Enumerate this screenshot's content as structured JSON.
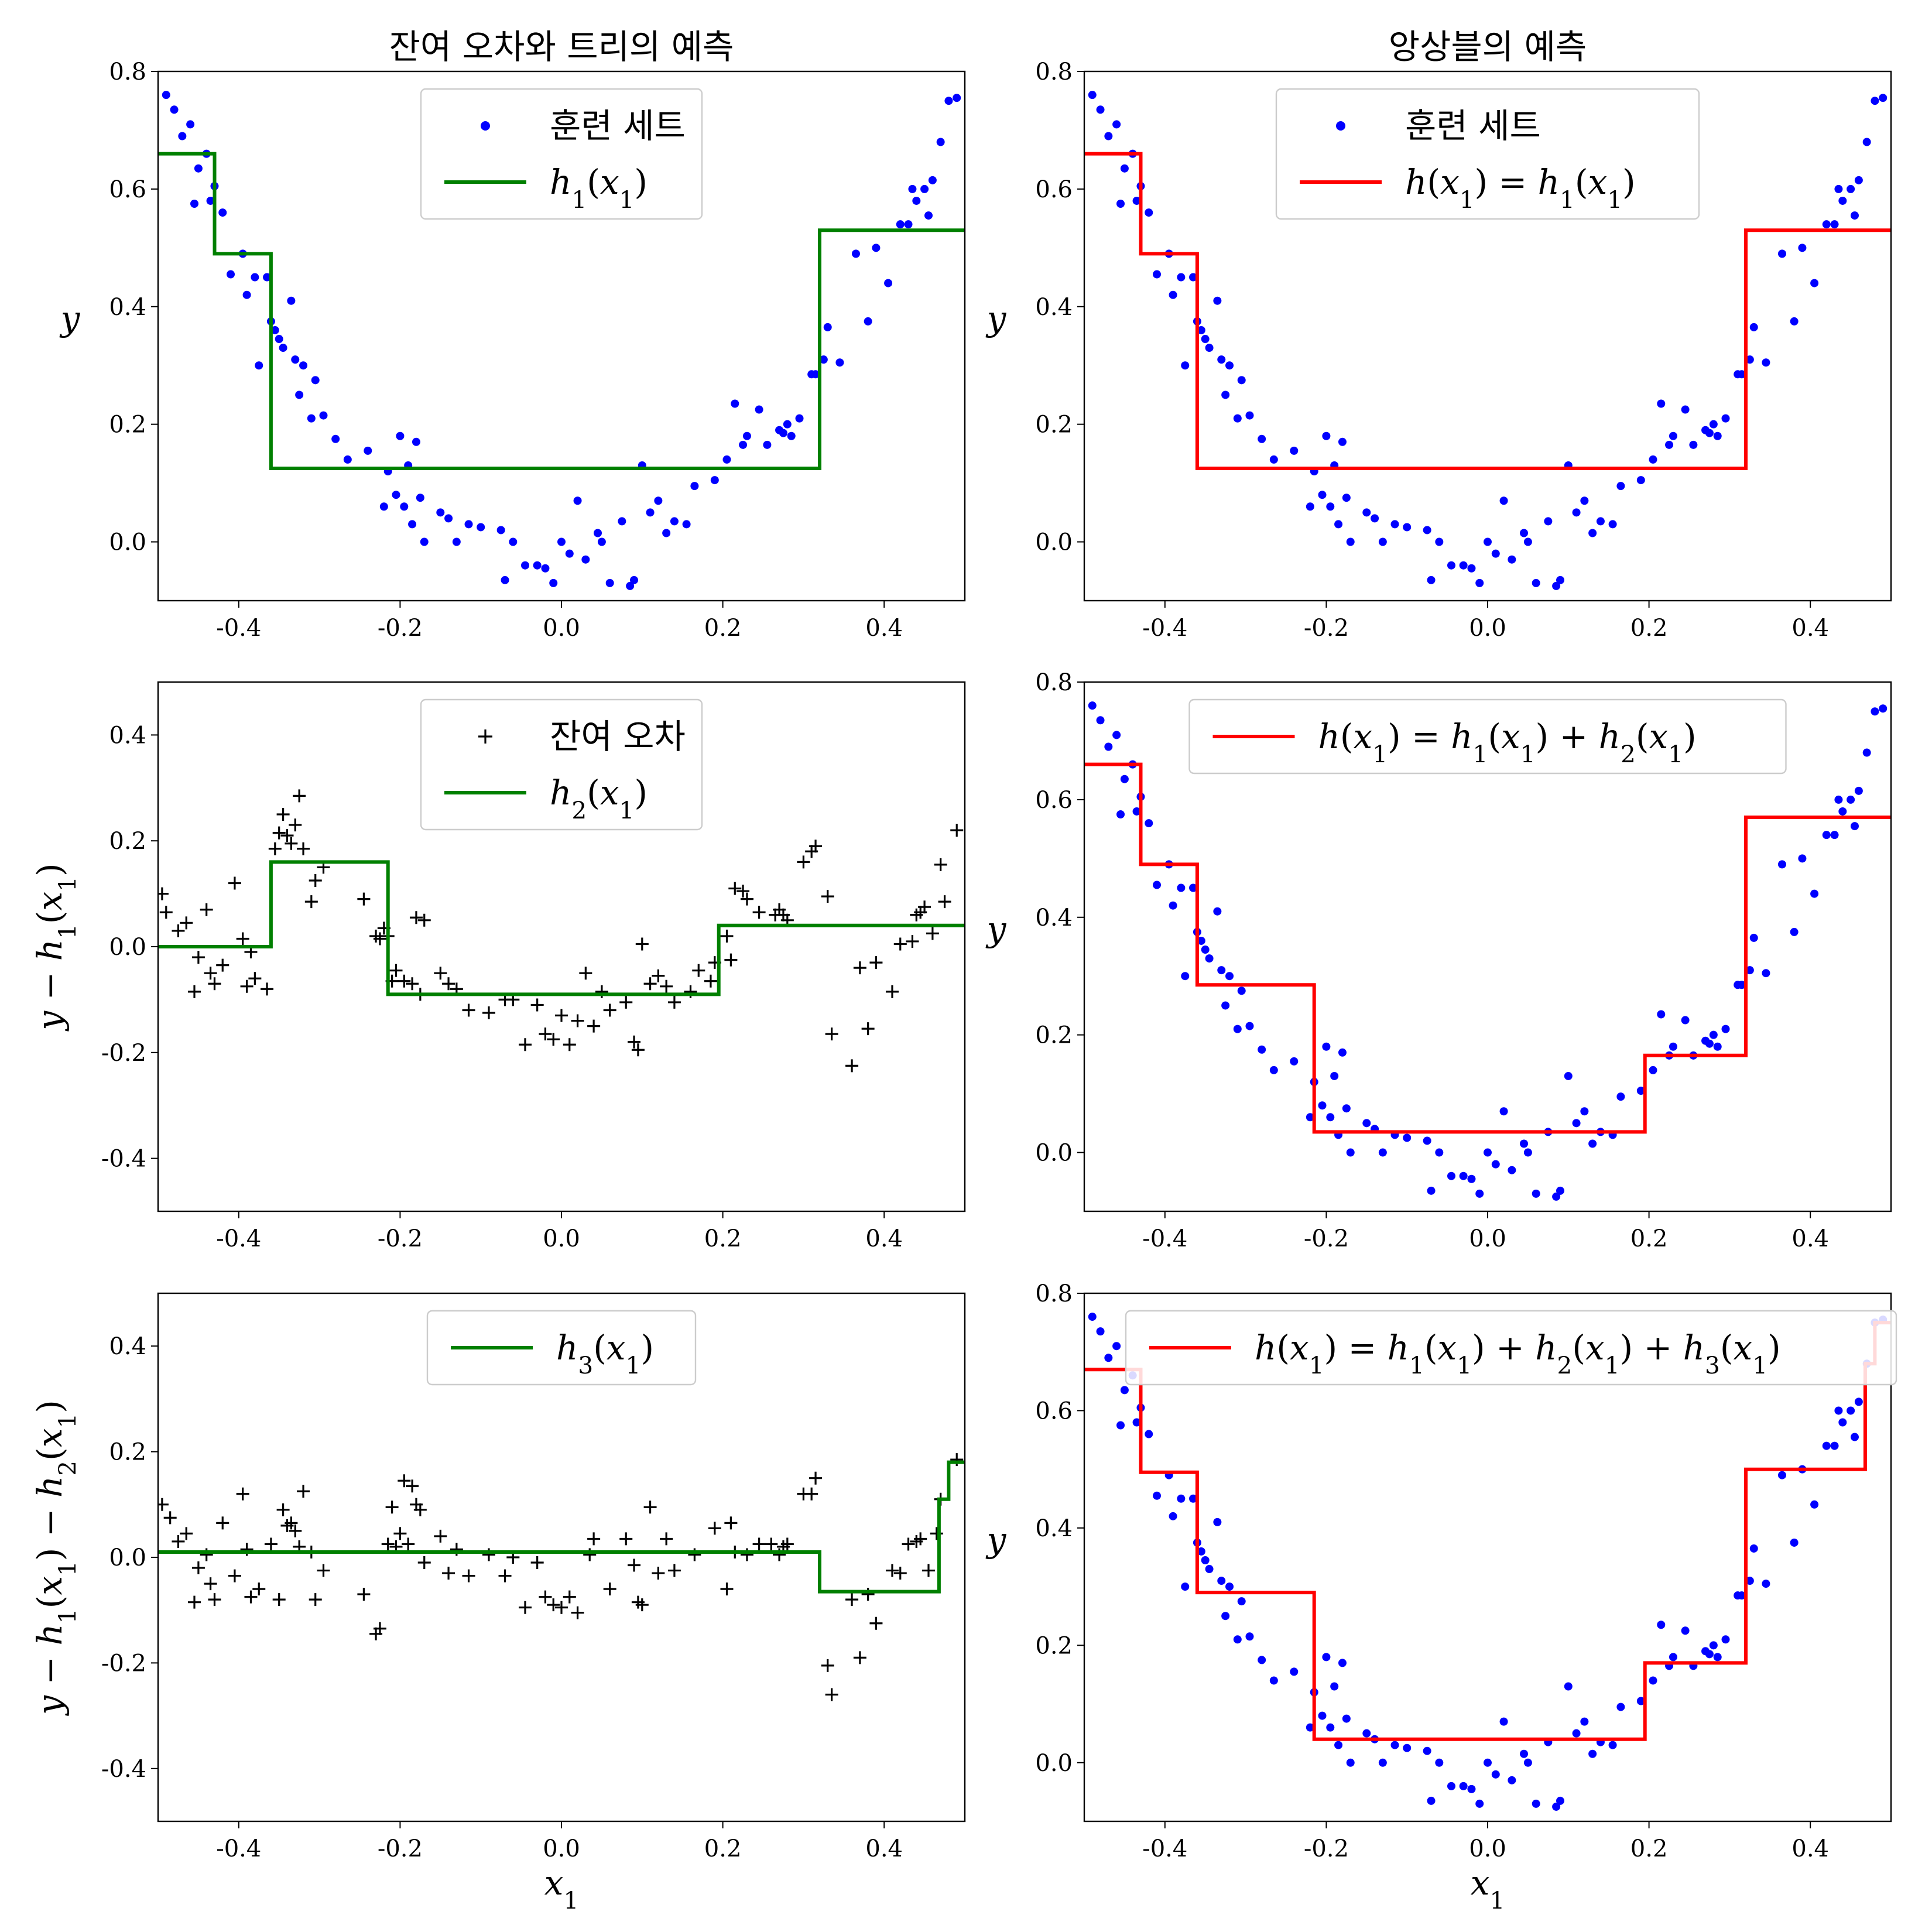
{
  "figure": {
    "colors": {
      "train": "#0000ff",
      "stage_fit": "#008000",
      "ensemble": "#ff0000",
      "residual": "#000000"
    },
    "x_ticks": [
      "-0.4",
      "-0.2",
      "0.0",
      "0.2",
      "0.4"
    ],
    "x_tick_values": [
      -0.4,
      -0.2,
      0.0,
      0.2,
      0.4
    ]
  },
  "chart_data": [
    {
      "type": "scatter",
      "panel": "top-left",
      "title": "잔여 오차와 트리의 예측",
      "ylabel": "y",
      "xlabel": "",
      "xlim": [
        -0.5,
        0.5
      ],
      "ylim": [
        -0.1,
        0.8
      ],
      "y_ticks": [
        "0.0",
        "0.2",
        "0.4",
        "0.6",
        "0.8"
      ],
      "y_tick_values": [
        0.0,
        0.2,
        0.4,
        0.6,
        0.8
      ],
      "legend": {
        "placement": "upper-center",
        "entries": [
          {
            "label": "훈련 세트",
            "marker": "dot",
            "color": "#0000ff"
          },
          {
            "label": "h1(x1)",
            "marker": "line",
            "color": "#008000"
          }
        ]
      },
      "points_series": "train",
      "step": {
        "name": "h1(x1)",
        "color": "#008000",
        "x": [
          -0.5,
          -0.43,
          -0.43,
          -0.36,
          -0.36,
          0.32,
          0.32,
          0.5
        ],
        "y": [
          0.66,
          0.66,
          0.49,
          0.49,
          0.125,
          0.125,
          0.53,
          0.53
        ]
      }
    },
    {
      "type": "scatter",
      "panel": "top-right",
      "title": "앙상블의 예측",
      "ylabel": "y",
      "xlabel": "",
      "xlim": [
        -0.5,
        0.5
      ],
      "ylim": [
        -0.1,
        0.8
      ],
      "y_ticks": [
        "0.0",
        "0.2",
        "0.4",
        "0.6",
        "0.8"
      ],
      "y_tick_values": [
        0.0,
        0.2,
        0.4,
        0.6,
        0.8
      ],
      "legend": {
        "placement": "upper-center",
        "entries": [
          {
            "label": "훈련 세트",
            "marker": "dot",
            "color": "#0000ff"
          },
          {
            "label": "h(x1) = h1(x1)",
            "marker": "line",
            "color": "#ff0000"
          }
        ]
      },
      "points_series": "train",
      "step": {
        "name": "h(x1) = h1(x1)",
        "color": "#ff0000",
        "x": [
          -0.5,
          -0.43,
          -0.43,
          -0.36,
          -0.36,
          0.32,
          0.32,
          0.5
        ],
        "y": [
          0.66,
          0.66,
          0.49,
          0.49,
          0.125,
          0.125,
          0.53,
          0.53
        ]
      }
    },
    {
      "type": "scatter",
      "panel": "middle-left",
      "title": "",
      "ylabel": "y − h1(x1)",
      "xlabel": "",
      "xlim": [
        -0.5,
        0.5
      ],
      "ylim": [
        -0.5,
        0.5
      ],
      "y_ticks": [
        "-0.4",
        "-0.2",
        "0.0",
        "0.2",
        "0.4"
      ],
      "y_tick_values": [
        -0.4,
        -0.2,
        0.0,
        0.2,
        0.4
      ],
      "legend": {
        "placement": "upper-center",
        "entries": [
          {
            "label": "잔여 오차",
            "marker": "plus",
            "color": "#000000"
          },
          {
            "label": "h2(x1)",
            "marker": "line",
            "color": "#008000"
          }
        ]
      },
      "points_series": "residual1",
      "step": {
        "name": "h2(x1)",
        "color": "#008000",
        "x": [
          -0.5,
          -0.36,
          -0.36,
          -0.215,
          -0.215,
          0.195,
          0.195,
          0.5
        ],
        "y": [
          0.0,
          0.0,
          0.16,
          0.16,
          -0.09,
          -0.09,
          0.04,
          0.04
        ]
      }
    },
    {
      "type": "scatter",
      "panel": "middle-right",
      "title": "",
      "ylabel": "y",
      "xlabel": "",
      "xlim": [
        -0.5,
        0.5
      ],
      "ylim": [
        -0.1,
        0.8
      ],
      "y_ticks": [
        "0.0",
        "0.2",
        "0.4",
        "0.6",
        "0.8"
      ],
      "y_tick_values": [
        0.0,
        0.2,
        0.4,
        0.6,
        0.8
      ],
      "legend": {
        "placement": "upper-center",
        "entries": [
          {
            "label": "h(x1) = h1(x1) + h2(x1)",
            "marker": "line",
            "color": "#ff0000"
          }
        ]
      },
      "points_series": "train",
      "step": {
        "name": "h(x1) = h1(x1) + h2(x1)",
        "color": "#ff0000",
        "x": [
          -0.5,
          -0.43,
          -0.43,
          -0.36,
          -0.36,
          -0.215,
          -0.215,
          0.195,
          0.195,
          0.32,
          0.32,
          0.5
        ],
        "y": [
          0.66,
          0.66,
          0.49,
          0.49,
          0.285,
          0.285,
          0.035,
          0.035,
          0.165,
          0.165,
          0.57,
          0.57
        ]
      }
    },
    {
      "type": "scatter",
      "panel": "bottom-left",
      "title": "",
      "ylabel": "y − h1(x1) − h2(x1)",
      "xlabel": "x1",
      "xlim": [
        -0.5,
        0.5
      ],
      "ylim": [
        -0.5,
        0.5
      ],
      "y_ticks": [
        "-0.4",
        "-0.2",
        "0.0",
        "0.2",
        "0.4"
      ],
      "y_tick_values": [
        -0.4,
        -0.2,
        0.0,
        0.2,
        0.4
      ],
      "legend": {
        "placement": "upper-center",
        "entries": [
          {
            "label": "h3(x1)",
            "marker": "line",
            "color": "#008000"
          }
        ]
      },
      "points_series": "residual2",
      "step": {
        "name": "h3(x1)",
        "color": "#008000",
        "x": [
          -0.5,
          0.32,
          0.32,
          0.468,
          0.468,
          0.48,
          0.48,
          0.5
        ],
        "y": [
          0.01,
          0.01,
          -0.065,
          -0.065,
          0.11,
          0.11,
          0.18,
          0.18
        ]
      }
    },
    {
      "type": "scatter",
      "panel": "bottom-right",
      "title": "",
      "ylabel": "y",
      "xlabel": "x1",
      "xlim": [
        -0.5,
        0.5
      ],
      "ylim": [
        -0.1,
        0.8
      ],
      "y_ticks": [
        "0.0",
        "0.2",
        "0.4",
        "0.6",
        "0.8"
      ],
      "y_tick_values": [
        0.0,
        0.2,
        0.4,
        0.6,
        0.8
      ],
      "legend": {
        "placement": "upper-center",
        "entries": [
          {
            "label": "h(x1) = h1(x1) + h2(x1) + h3(x1)",
            "marker": "line",
            "color": "#ff0000"
          }
        ]
      },
      "points_series": "train",
      "step": {
        "name": "h(x1) = h1(x1) + h2(x1) + h3(x1)",
        "color": "#ff0000",
        "x": [
          -0.5,
          -0.43,
          -0.43,
          -0.36,
          -0.36,
          -0.215,
          -0.215,
          0.195,
          0.195,
          0.32,
          0.32,
          0.468,
          0.468,
          0.48,
          0.48,
          0.5
        ],
        "y": [
          0.67,
          0.67,
          0.495,
          0.495,
          0.29,
          0.29,
          0.04,
          0.04,
          0.17,
          0.17,
          0.5,
          0.5,
          0.68,
          0.68,
          0.75,
          0.75
        ]
      }
    }
  ],
  "series_points": {
    "train": {
      "x": [
        -0.49,
        -0.48,
        -0.47,
        -0.46,
        -0.455,
        -0.45,
        -0.44,
        -0.435,
        -0.43,
        -0.42,
        -0.41,
        -0.395,
        -0.39,
        -0.38,
        -0.375,
        -0.365,
        -0.36,
        -0.355,
        -0.35,
        -0.345,
        -0.335,
        -0.33,
        -0.325,
        -0.32,
        -0.31,
        -0.305,
        -0.295,
        -0.28,
        -0.265,
        -0.24,
        -0.22,
        -0.215,
        -0.205,
        -0.2,
        -0.195,
        -0.19,
        -0.185,
        -0.18,
        -0.175,
        -0.17,
        -0.15,
        -0.14,
        -0.13,
        -0.115,
        -0.1,
        -0.075,
        -0.07,
        -0.06,
        -0.045,
        -0.03,
        -0.02,
        -0.01,
        0.0,
        0.01,
        0.02,
        0.03,
        0.045,
        0.05,
        0.06,
        0.075,
        0.085,
        0.09,
        0.1,
        0.11,
        0.12,
        0.13,
        0.14,
        0.155,
        0.165,
        0.19,
        0.205,
        0.215,
        0.225,
        0.23,
        0.245,
        0.255,
        0.27,
        0.275,
        0.28,
        0.285,
        0.295,
        0.31,
        0.315,
        0.325,
        0.33,
        0.345,
        0.365,
        0.38,
        0.39,
        0.405,
        0.42,
        0.43,
        0.435,
        0.44,
        0.45,
        0.455,
        0.46,
        0.47,
        0.48,
        0.49
      ],
      "y": [
        0.76,
        0.735,
        0.69,
        0.71,
        0.575,
        0.635,
        0.66,
        0.58,
        0.605,
        0.56,
        0.455,
        0.49,
        0.42,
        0.45,
        0.3,
        0.45,
        0.375,
        0.36,
        0.345,
        0.33,
        0.41,
        0.31,
        0.25,
        0.3,
        0.21,
        0.275,
        0.215,
        0.175,
        0.14,
        0.155,
        0.06,
        0.12,
        0.08,
        0.18,
        0.06,
        0.13,
        0.03,
        0.17,
        0.075,
        0.0,
        0.05,
        0.04,
        0.0,
        0.03,
        0.025,
        0.02,
        -0.065,
        0.0,
        -0.04,
        -0.04,
        -0.045,
        -0.07,
        0.0,
        -0.02,
        0.07,
        -0.03,
        0.015,
        0.0,
        -0.07,
        0.035,
        -0.075,
        -0.065,
        0.13,
        0.05,
        0.07,
        0.015,
        0.035,
        0.03,
        0.095,
        0.105,
        0.14,
        0.235,
        0.165,
        0.18,
        0.225,
        0.165,
        0.19,
        0.185,
        0.2,
        0.18,
        0.21,
        0.285,
        0.285,
        0.31,
        0.365,
        0.305,
        0.49,
        0.375,
        0.5,
        0.44,
        0.54,
        0.54,
        0.6,
        0.58,
        0.6,
        0.555,
        0.615,
        0.68,
        0.75,
        0.755
      ]
    },
    "residual1": {
      "x": [
        -0.495,
        -0.49,
        -0.475,
        -0.465,
        -0.455,
        -0.45,
        -0.44,
        -0.435,
        -0.43,
        -0.42,
        -0.405,
        -0.395,
        -0.39,
        -0.385,
        -0.38,
        -0.365,
        -0.355,
        -0.35,
        -0.345,
        -0.34,
        -0.335,
        -0.33,
        -0.325,
        -0.32,
        -0.31,
        -0.305,
        -0.295,
        -0.245,
        -0.23,
        -0.225,
        -0.22,
        -0.215,
        -0.21,
        -0.205,
        -0.195,
        -0.185,
        -0.18,
        -0.175,
        -0.17,
        -0.15,
        -0.14,
        -0.13,
        -0.115,
        -0.09,
        -0.07,
        -0.06,
        -0.045,
        -0.03,
        -0.02,
        -0.01,
        0.0,
        0.01,
        0.02,
        0.03,
        0.04,
        0.05,
        0.06,
        0.08,
        0.09,
        0.095,
        0.1,
        0.11,
        0.12,
        0.13,
        0.14,
        0.16,
        0.17,
        0.185,
        0.19,
        0.205,
        0.21,
        0.215,
        0.225,
        0.23,
        0.245,
        0.265,
        0.27,
        0.275,
        0.28,
        0.3,
        0.31,
        0.315,
        0.33,
        0.335,
        0.36,
        0.37,
        0.38,
        0.39,
        0.41,
        0.42,
        0.435,
        0.44,
        0.445,
        0.45,
        0.46,
        0.47,
        0.475,
        0.49
      ],
      "y": [
        0.1,
        0.065,
        0.03,
        0.045,
        -0.085,
        -0.02,
        0.07,
        -0.05,
        -0.07,
        -0.035,
        0.12,
        0.015,
        -0.075,
        -0.01,
        -0.06,
        -0.08,
        0.185,
        0.215,
        0.25,
        0.21,
        0.195,
        0.23,
        0.285,
        0.185,
        0.085,
        0.125,
        0.15,
        0.09,
        0.02,
        0.015,
        0.035,
        0.02,
        -0.065,
        -0.045,
        -0.065,
        -0.07,
        0.055,
        -0.09,
        0.05,
        -0.05,
        -0.07,
        -0.08,
        -0.12,
        -0.125,
        -0.1,
        -0.1,
        -0.185,
        -0.11,
        -0.165,
        -0.175,
        -0.13,
        -0.185,
        -0.14,
        -0.05,
        -0.15,
        -0.085,
        -0.12,
        -0.105,
        -0.18,
        -0.195,
        0.005,
        -0.07,
        -0.055,
        -0.075,
        -0.105,
        -0.085,
        -0.045,
        -0.065,
        -0.03,
        0.02,
        -0.025,
        0.11,
        0.105,
        0.09,
        0.065,
        0.06,
        0.07,
        0.06,
        0.05,
        0.16,
        0.18,
        0.19,
        0.095,
        -0.165,
        -0.225,
        -0.04,
        -0.155,
        -0.03,
        -0.085,
        0.005,
        0.01,
        0.06,
        0.065,
        0.075,
        0.025,
        0.155,
        0.085,
        0.22
      ]
    },
    "residual2": {
      "x": [
        -0.495,
        -0.485,
        -0.475,
        -0.465,
        -0.455,
        -0.45,
        -0.44,
        -0.435,
        -0.43,
        -0.42,
        -0.405,
        -0.395,
        -0.39,
        -0.385,
        -0.375,
        -0.36,
        -0.35,
        -0.345,
        -0.34,
        -0.335,
        -0.33,
        -0.325,
        -0.32,
        -0.31,
        -0.305,
        -0.295,
        -0.245,
        -0.23,
        -0.225,
        -0.215,
        -0.21,
        -0.205,
        -0.2,
        -0.195,
        -0.19,
        -0.185,
        -0.18,
        -0.175,
        -0.17,
        -0.15,
        -0.14,
        -0.13,
        -0.115,
        -0.09,
        -0.07,
        -0.06,
        -0.045,
        -0.03,
        -0.02,
        -0.01,
        0.0,
        0.01,
        0.02,
        0.035,
        0.04,
        0.06,
        0.08,
        0.09,
        0.095,
        0.1,
        0.11,
        0.12,
        0.13,
        0.14,
        0.165,
        0.19,
        0.205,
        0.21,
        0.215,
        0.23,
        0.245,
        0.26,
        0.27,
        0.275,
        0.28,
        0.3,
        0.31,
        0.315,
        0.33,
        0.335,
        0.36,
        0.37,
        0.38,
        0.39,
        0.41,
        0.42,
        0.43,
        0.44,
        0.445,
        0.455,
        0.465,
        0.47,
        0.49
      ],
      "y": [
        0.1,
        0.075,
        0.03,
        0.045,
        -0.085,
        -0.02,
        0.005,
        -0.05,
        -0.08,
        0.065,
        -0.035,
        0.12,
        0.015,
        -0.075,
        -0.06,
        0.025,
        -0.08,
        0.09,
        0.06,
        0.065,
        0.05,
        0.02,
        0.125,
        0.01,
        -0.08,
        -0.025,
        -0.07,
        -0.145,
        -0.135,
        0.025,
        0.095,
        0.02,
        0.045,
        0.145,
        0.025,
        0.135,
        0.1,
        0.09,
        -0.01,
        0.04,
        -0.03,
        0.015,
        -0.035,
        0.005,
        -0.035,
        0.0,
        -0.095,
        -0.01,
        -0.075,
        -0.09,
        -0.095,
        -0.075,
        -0.105,
        0.005,
        0.035,
        -0.06,
        0.035,
        -0.015,
        -0.085,
        -0.09,
        0.095,
        -0.03,
        0.035,
        -0.025,
        0.005,
        0.055,
        -0.06,
        0.065,
        0.01,
        0.005,
        0.025,
        0.025,
        0.005,
        0.02,
        0.025,
        0.12,
        0.12,
        0.15,
        -0.205,
        -0.26,
        -0.08,
        -0.19,
        -0.07,
        -0.125,
        -0.025,
        -0.03,
        0.025,
        0.03,
        0.035,
        -0.025,
        0.045,
        0.11,
        0.185
      ]
    }
  }
}
